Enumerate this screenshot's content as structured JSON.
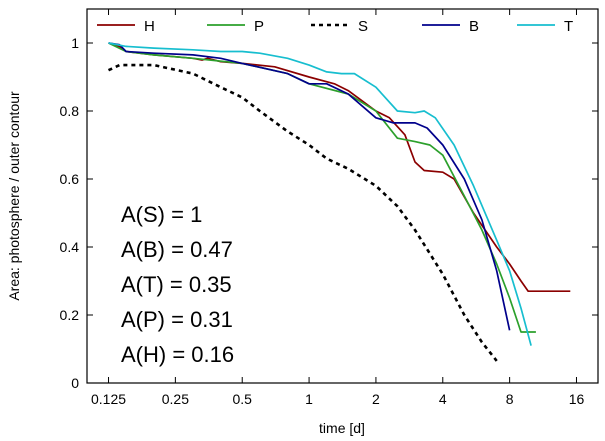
{
  "chart_data": {
    "type": "line",
    "title": "",
    "xlabel": "time [d]",
    "ylabel": "Area: photosphere / outer contour",
    "xscale": "log2",
    "xlim": [
      0.1,
      20
    ],
    "ylim": [
      0,
      1.1
    ],
    "xticks": [
      {
        "value": 0.125,
        "label": "0.125"
      },
      {
        "value": 0.25,
        "label": "0.25"
      },
      {
        "value": 0.5,
        "label": "0.5"
      },
      {
        "value": 1,
        "label": "1"
      },
      {
        "value": 2,
        "label": "2"
      },
      {
        "value": 4,
        "label": "4"
      },
      {
        "value": 8,
        "label": "8"
      },
      {
        "value": 16,
        "label": "16"
      }
    ],
    "yticks": [
      {
        "value": 0,
        "label": "0"
      },
      {
        "value": 0.2,
        "label": "0.2"
      },
      {
        "value": 0.4,
        "label": "0.4"
      },
      {
        "value": 0.6,
        "label": "0.6"
      },
      {
        "value": 0.8,
        "label": "0.8"
      },
      {
        "value": 1,
        "label": "1"
      }
    ],
    "grid": false,
    "legend_position": "top",
    "series": [
      {
        "name": "H",
        "color": "#8b0000",
        "dash": "solid",
        "points": [
          [
            0.125,
            1.0
          ],
          [
            0.14,
            0.99
          ],
          [
            0.15,
            0.975
          ],
          [
            0.2,
            0.965
          ],
          [
            0.3,
            0.955
          ],
          [
            0.33,
            0.95
          ],
          [
            0.35,
            0.955
          ],
          [
            0.4,
            0.945
          ],
          [
            0.5,
            0.94
          ],
          [
            0.7,
            0.93
          ],
          [
            1.0,
            0.9
          ],
          [
            1.3,
            0.88
          ],
          [
            1.5,
            0.86
          ],
          [
            2.0,
            0.8
          ],
          [
            2.3,
            0.78
          ],
          [
            2.7,
            0.73
          ],
          [
            3.0,
            0.65
          ],
          [
            3.3,
            0.625
          ],
          [
            4.0,
            0.62
          ],
          [
            4.5,
            0.6
          ],
          [
            5.5,
            0.5
          ],
          [
            7.0,
            0.4
          ],
          [
            8.0,
            0.35
          ],
          [
            9.0,
            0.3
          ],
          [
            9.7,
            0.27
          ],
          [
            15.0,
            0.27
          ]
        ]
      },
      {
        "name": "P",
        "color": "#2ca02c",
        "dash": "solid",
        "points": [
          [
            0.125,
            1.0
          ],
          [
            0.15,
            0.975
          ],
          [
            0.2,
            0.965
          ],
          [
            0.3,
            0.955
          ],
          [
            0.5,
            0.94
          ],
          [
            0.8,
            0.91
          ],
          [
            1.0,
            0.88
          ],
          [
            1.5,
            0.85
          ],
          [
            2.0,
            0.8
          ],
          [
            2.5,
            0.72
          ],
          [
            3.0,
            0.71
          ],
          [
            3.5,
            0.7
          ],
          [
            4.0,
            0.67
          ],
          [
            5.0,
            0.55
          ],
          [
            6.0,
            0.45
          ],
          [
            7.0,
            0.35
          ],
          [
            8.0,
            0.25
          ],
          [
            9.0,
            0.15
          ],
          [
            10.5,
            0.15
          ]
        ]
      },
      {
        "name": "S",
        "color": "#000000",
        "dash": "dotted",
        "points": [
          [
            0.125,
            0.92
          ],
          [
            0.14,
            0.935
          ],
          [
            0.2,
            0.935
          ],
          [
            0.3,
            0.91
          ],
          [
            0.4,
            0.87
          ],
          [
            0.5,
            0.84
          ],
          [
            0.6,
            0.8
          ],
          [
            0.8,
            0.74
          ],
          [
            1.0,
            0.7
          ],
          [
            1.2,
            0.66
          ],
          [
            1.5,
            0.63
          ],
          [
            2.0,
            0.58
          ],
          [
            2.5,
            0.52
          ],
          [
            3.0,
            0.45
          ],
          [
            4.0,
            0.32
          ],
          [
            5.0,
            0.2
          ],
          [
            6.0,
            0.12
          ],
          [
            7.0,
            0.065
          ]
        ]
      },
      {
        "name": "B",
        "color": "#00008b",
        "dash": "solid",
        "points": [
          [
            0.125,
            1.0
          ],
          [
            0.14,
            0.995
          ],
          [
            0.15,
            0.975
          ],
          [
            0.2,
            0.97
          ],
          [
            0.3,
            0.965
          ],
          [
            0.4,
            0.955
          ],
          [
            0.5,
            0.94
          ],
          [
            0.8,
            0.91
          ],
          [
            1.0,
            0.88
          ],
          [
            1.2,
            0.88
          ],
          [
            1.5,
            0.85
          ],
          [
            2.0,
            0.78
          ],
          [
            2.4,
            0.765
          ],
          [
            3.0,
            0.765
          ],
          [
            3.4,
            0.75
          ],
          [
            4.0,
            0.7
          ],
          [
            5.0,
            0.6
          ],
          [
            6.0,
            0.48
          ],
          [
            7.0,
            0.33
          ],
          [
            8.0,
            0.155
          ]
        ]
      },
      {
        "name": "T",
        "color": "#17becf",
        "dash": "solid",
        "points": [
          [
            0.125,
            1.0
          ],
          [
            0.15,
            0.99
          ],
          [
            0.2,
            0.985
          ],
          [
            0.3,
            0.98
          ],
          [
            0.4,
            0.975
          ],
          [
            0.5,
            0.975
          ],
          [
            0.6,
            0.97
          ],
          [
            0.8,
            0.955
          ],
          [
            1.0,
            0.935
          ],
          [
            1.2,
            0.915
          ],
          [
            1.4,
            0.91
          ],
          [
            1.6,
            0.91
          ],
          [
            2.0,
            0.87
          ],
          [
            2.5,
            0.8
          ],
          [
            3.0,
            0.795
          ],
          [
            3.3,
            0.8
          ],
          [
            3.7,
            0.78
          ],
          [
            4.5,
            0.7
          ],
          [
            5.5,
            0.58
          ],
          [
            7.0,
            0.42
          ],
          [
            8.0,
            0.33
          ],
          [
            9.0,
            0.22
          ],
          [
            10.0,
            0.11
          ]
        ]
      }
    ],
    "annotations": [
      "A(S) = 1",
      "A(B) = 0.47",
      "A(T) = 0.35",
      "A(P) = 0.31",
      "A(H) = 0.16"
    ]
  }
}
